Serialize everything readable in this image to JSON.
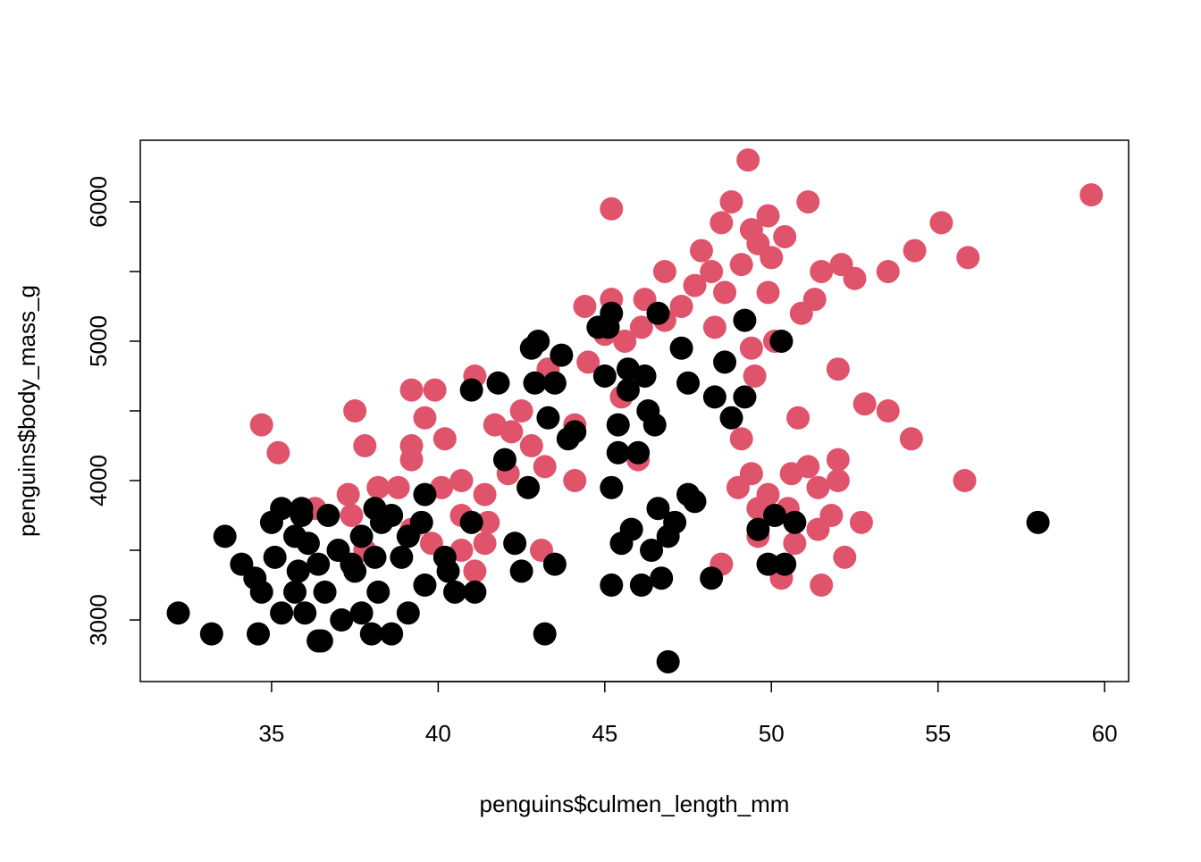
{
  "chart_data": {
    "type": "scatter",
    "x_label": "penguins$culmen_length_mm",
    "y_label": "penguins$body_mass_g",
    "xlim": [
      31.06,
      60.72
    ],
    "ylim": [
      2558,
      6442
    ],
    "xticks": [
      35,
      40,
      45,
      50,
      55,
      60
    ],
    "yticks": [
      3000,
      4000,
      5000,
      6000
    ],
    "yticks_minor": [
      3500,
      4500,
      5500
    ],
    "series": [
      {
        "color": "#df536b",
        "x": [
          49.3,
          59.6,
          45.2,
          48.8,
          51.1,
          48.5,
          55.1,
          49.4,
          49.9,
          55.9,
          54.3,
          47.9,
          53.5,
          51.5,
          52.1,
          52.5,
          46.8,
          48.2,
          49.1,
          49.6,
          50.4,
          50.0,
          47.7,
          48.6,
          49.9,
          45.2,
          46.2,
          51.3,
          50.9,
          44.4,
          47.3,
          48.3,
          46.8,
          46.1,
          45.0,
          45.6,
          50.1,
          49.4,
          43.3,
          44.5,
          49.5,
          52.0,
          39.2,
          39.9,
          41.1,
          37.5,
          39.6,
          42.5,
          45.5,
          34.7,
          44.1,
          50.8,
          52.8,
          53.5,
          37.8,
          35.2,
          39.2,
          40.2,
          41.7,
          42.2,
          42.8,
          54.2,
          49.1,
          46.0,
          43.2,
          39.2,
          44.1,
          40.7,
          42.1,
          55.8,
          52.0,
          51.1,
          50.6,
          49.4,
          49.0,
          51.4,
          52.0,
          38.2,
          38.8,
          37.3,
          49.9,
          40.1,
          41.4,
          36.3,
          37.4,
          40.7,
          49.6,
          50.5,
          51.8,
          52.7,
          41.5,
          51.4,
          49.6,
          50.7,
          39.2,
          39.8,
          37.8,
          41.4,
          40.7,
          43.1,
          52.2,
          48.5,
          41.1,
          50.3,
          51.5
        ],
        "values": [
          6300,
          6050,
          5950,
          6000,
          6000,
          5850,
          5850,
          5800,
          5900,
          5600,
          5650,
          5650,
          5500,
          5500,
          5550,
          5450,
          5500,
          5500,
          5550,
          5700,
          5750,
          5600,
          5400,
          5350,
          5350,
          5300,
          5300,
          5300,
          5200,
          5250,
          5250,
          5100,
          5150,
          5100,
          5050,
          5000,
          5000,
          4950,
          4800,
          4850,
          4750,
          4800,
          4650,
          4650,
          4750,
          4500,
          4450,
          4500,
          4600,
          4400,
          4400,
          4450,
          4550,
          4500,
          4250,
          4200,
          4250,
          4300,
          4400,
          4350,
          4250,
          4300,
          4300,
          4150,
          4100,
          4150,
          4000,
          4000,
          4050,
          4000,
          4150,
          4100,
          4050,
          4050,
          3950,
          3950,
          4000,
          3950,
          3950,
          3900,
          3900,
          3950,
          3900,
          3800,
          3750,
          3750,
          3800,
          3800,
          3750,
          3700,
          3700,
          3650,
          3600,
          3550,
          3650,
          3550,
          3500,
          3550,
          3500,
          3500,
          3450,
          3400,
          3350,
          3300,
          3250
        ]
      },
      {
        "color": "#000000",
        "x": [
          32.2,
          33.2,
          34.6,
          33.6,
          34.1,
          34.5,
          34.7,
          35.0,
          35.3,
          35.1,
          35.3,
          35.7,
          35.9,
          35.9,
          35.8,
          35.7,
          36.0,
          36.1,
          36.4,
          36.4,
          36.5,
          36.6,
          36.7,
          37.0,
          37.1,
          37.4,
          37.5,
          37.7,
          37.7,
          38.0,
          38.1,
          38.1,
          38.2,
          38.3,
          38.6,
          38.6,
          38.9,
          39.1,
          39.1,
          39.5,
          39.6,
          39.6,
          40.2,
          40.3,
          40.5,
          41.0,
          41.1,
          41.0,
          41.8,
          42.0,
          42.3,
          42.5,
          42.7,
          42.8,
          43.0,
          42.9,
          43.3,
          43.2,
          43.5,
          43.5,
          43.7,
          43.9,
          44.1,
          45.0,
          45.1,
          45.2,
          45.2,
          45.2,
          45.4,
          45.4,
          45.5,
          45.7,
          45.7,
          45.8,
          46.0,
          46.1,
          46.2,
          46.3,
          46.4,
          46.6,
          46.5,
          46.6,
          46.7,
          46.9,
          46.9,
          47.1,
          47.3,
          47.5,
          47.5,
          47.7,
          48.2,
          48.3,
          48.6,
          48.8,
          49.2,
          49.2,
          49.6,
          49.9,
          50.3,
          50.1,
          50.4,
          50.7,
          58.0,
          44.8
        ],
        "values": [
          3050,
          2900,
          2900,
          3600,
          3400,
          3300,
          3200,
          3700,
          3800,
          3450,
          3050,
          3600,
          3750,
          3800,
          3350,
          3200,
          3050,
          3550,
          3400,
          2850,
          2850,
          3200,
          3750,
          3500,
          3000,
          3400,
          3350,
          3600,
          3050,
          2900,
          3800,
          3450,
          3200,
          3700,
          2900,
          3750,
          3450,
          3050,
          3600,
          3700,
          3900,
          3250,
          3450,
          3350,
          3200,
          3700,
          3200,
          4650,
          4700,
          4150,
          3550,
          3350,
          3950,
          4950,
          5000,
          4700,
          4450,
          2900,
          3400,
          4700,
          4900,
          4300,
          4350,
          4750,
          5100,
          5200,
          3250,
          3950,
          4400,
          4200,
          3550,
          4800,
          4650,
          3650,
          4200,
          3250,
          4750,
          4500,
          3500,
          5200,
          4400,
          3800,
          3300,
          3600,
          2700,
          3700,
          4950,
          4700,
          3900,
          3850,
          3300,
          4600,
          4850,
          4450,
          5150,
          4600,
          3650,
          3400,
          5000,
          3750,
          3400,
          3700,
          3700,
          5100
        ]
      }
    ]
  }
}
